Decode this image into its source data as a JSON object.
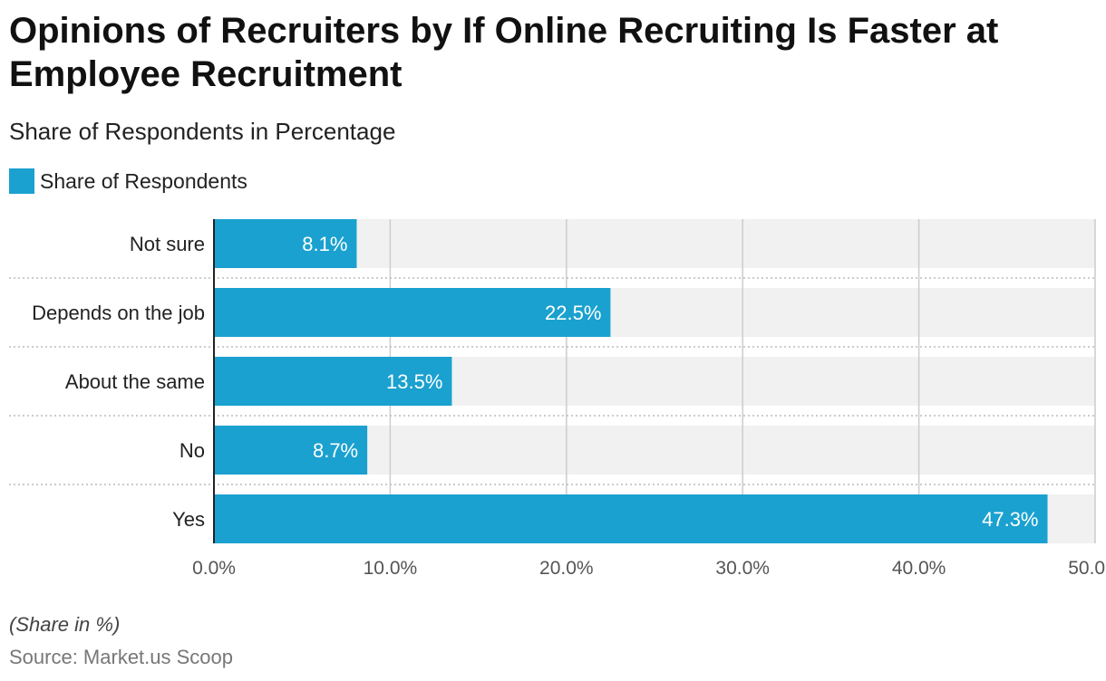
{
  "title": "Opinions of Recruiters by If Online Recruiting Is Faster at Employee Recruitment",
  "subtitle": "Share of Respondents in Percentage",
  "note": "(Share in %)",
  "source": "Source: Market.us Scoop",
  "colors": {
    "bar": "#1aa1cf",
    "track": "#f1f1f1",
    "grid": "#cccccc"
  },
  "chart_data": {
    "type": "bar",
    "orientation": "horizontal",
    "categories": [
      "Not sure",
      "Depends on the job",
      "About the same",
      "No",
      "Yes"
    ],
    "series": [
      {
        "name": "Share of Respondents",
        "values": [
          8.1,
          22.5,
          13.5,
          8.7,
          47.3
        ]
      }
    ],
    "data_labels": [
      "8.1%",
      "22.5%",
      "13.5%",
      "8.7%",
      "47.3%"
    ],
    "xlim": [
      0,
      50
    ],
    "xticks": [
      0,
      10,
      20,
      30,
      40,
      50
    ],
    "xtick_labels": [
      "0.0%",
      "10.0%",
      "20.0%",
      "30.0%",
      "40.0%",
      "50.0%"
    ],
    "grid": true,
    "legend": "top-left"
  }
}
